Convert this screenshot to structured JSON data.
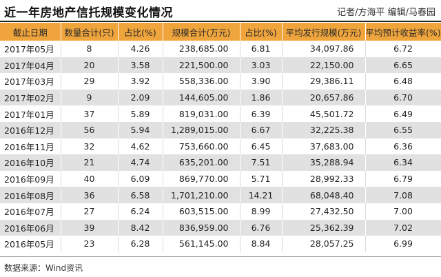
{
  "title": "近一年房地产信托规模变化情况",
  "credit": "记者/方海平 编辑/马春园",
  "table": {
    "headers": [
      "截止日期",
      "数量合计(只)",
      "占比(%)",
      "规模合计(万元)",
      "占比(%)",
      "平均发行规模(万元)",
      "平均预计收益率(%)"
    ],
    "rows": [
      [
        "2017年05月",
        "8",
        "4.26",
        "238,685.00",
        "6.81",
        "34,097.86",
        "6.72"
      ],
      [
        "2017年04月",
        "20",
        "3.58",
        "221,500.00",
        "3.03",
        "22,150.00",
        "6.65"
      ],
      [
        "2017年03月",
        "29",
        "3.92",
        "558,336.00",
        "3.90",
        "29,386.11",
        "6.48"
      ],
      [
        "2017年02月",
        "9",
        "2.09",
        "144,605.00",
        "1.86",
        "20,657.86",
        "6.70"
      ],
      [
        "2017年01月",
        "37",
        "5.89",
        "819,031.00",
        "6.39",
        "45,501.72",
        "6.49"
      ],
      [
        "2016年12月",
        "56",
        "5.94",
        "1,289,015.00",
        "6.67",
        "32,225.38",
        "6.55"
      ],
      [
        "2016年11月",
        "32",
        "4.62",
        "753,660.00",
        "6.45",
        "37,683.00",
        "6.36"
      ],
      [
        "2016年10月",
        "21",
        "4.74",
        "635,201.00",
        "7.51",
        "35,288.94",
        "6.34"
      ],
      [
        "2016年09月",
        "40",
        "6.09",
        "869,770.00",
        "5.71",
        "28,992.33",
        "6.79"
      ],
      [
        "2016年08月",
        "36",
        "6.58",
        "1,701,210.00",
        "14.21",
        "68,048.40",
        "7.08"
      ],
      [
        "2016年07月",
        "27",
        "6.24",
        "603,515.00",
        "8.99",
        "27,432.50",
        "7.00"
      ],
      [
        "2016年06月",
        "39",
        "8.42",
        "836,959.00",
        "6.76",
        "25,362.39",
        "7.02"
      ],
      [
        "2016年05月",
        "23",
        "6.28",
        "561,145.00",
        "8.84",
        "28,057.25",
        "6.99"
      ]
    ]
  },
  "source": "数据来源：Wind资讯",
  "colors": {
    "header_bg": "#f0a53c",
    "stripe_bg": "#e1e1e1"
  }
}
